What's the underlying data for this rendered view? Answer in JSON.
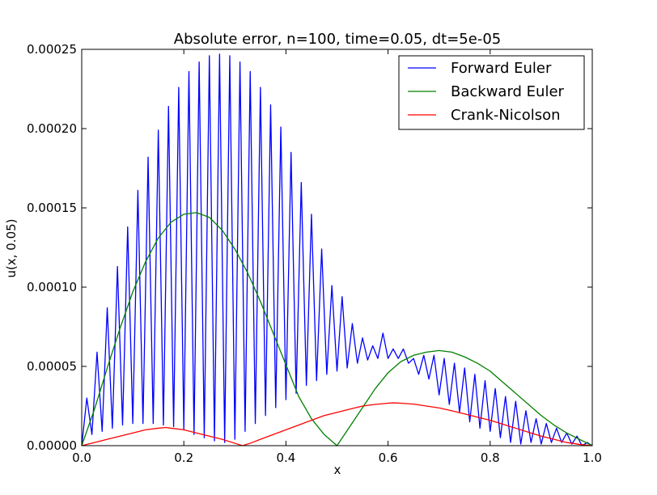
{
  "chart_data": {
    "type": "line",
    "title": "Absolute error, n=100, time=0.05, dt=5e-05",
    "xlabel": "x",
    "ylabel": "u(x, 0.05)",
    "xlim": [
      0.0,
      1.0
    ],
    "ylim": [
      0.0,
      0.00025
    ],
    "xticks": [
      "0.0",
      "0.2",
      "0.4",
      "0.6",
      "0.8",
      "1.0"
    ],
    "yticks": [
      "0.00000",
      "0.00005",
      "0.00010",
      "0.00015",
      "0.00020",
      "0.00025"
    ],
    "grid": false,
    "legend_position": "top-right",
    "series": [
      {
        "name": "Forward Euler",
        "color": "#0000ff",
        "x": [
          0.0,
          0.01,
          0.02,
          0.03,
          0.04,
          0.05,
          0.06,
          0.07,
          0.08,
          0.09,
          0.1,
          0.11,
          0.12,
          0.13,
          0.14,
          0.15,
          0.16,
          0.17,
          0.18,
          0.19,
          0.2,
          0.21,
          0.22,
          0.23,
          0.24,
          0.25,
          0.26,
          0.27,
          0.28,
          0.29,
          0.3,
          0.31,
          0.32,
          0.33,
          0.34,
          0.35,
          0.36,
          0.37,
          0.38,
          0.39,
          0.4,
          0.41,
          0.42,
          0.43,
          0.44,
          0.45,
          0.46,
          0.47,
          0.48,
          0.49,
          0.5,
          0.51,
          0.52,
          0.53,
          0.54,
          0.55,
          0.56,
          0.57,
          0.58,
          0.59,
          0.6,
          0.61,
          0.62,
          0.63,
          0.64,
          0.65,
          0.66,
          0.67,
          0.68,
          0.69,
          0.7,
          0.71,
          0.72,
          0.73,
          0.74,
          0.75,
          0.76,
          0.77,
          0.78,
          0.79,
          0.8,
          0.81,
          0.82,
          0.83,
          0.84,
          0.85,
          0.86,
          0.87,
          0.88,
          0.89,
          0.9,
          0.91,
          0.92,
          0.93,
          0.94,
          0.95,
          0.96,
          0.97,
          0.98,
          0.99,
          1.0
        ],
        "values": [
          0.0,
          3e-05,
          7e-06,
          5.9e-05,
          9e-06,
          8.7e-05,
          1.1e-05,
          0.000113,
          1.3e-05,
          0.000138,
          1.4e-05,
          0.000161,
          1.4e-05,
          0.000182,
          1.4e-05,
          0.000199,
          1.3e-05,
          0.000214,
          1.2e-05,
          0.000226,
          1e-05,
          0.000236,
          7e-06,
          0.000242,
          5e-06,
          0.000246,
          3e-06,
          0.000247,
          2e-06,
          0.000246,
          4e-06,
          0.000242,
          9e-06,
          0.000236,
          1.4e-05,
          0.000226,
          1.9e-05,
          0.000215,
          2.4e-05,
          0.000201,
          2.9e-05,
          0.000185,
          3.3e-05,
          0.000166,
          3.8e-05,
          0.000146,
          4.1e-05,
          0.000124,
          4.5e-05,
          0.000101,
          4.7e-05,
          9.4e-05,
          4.9e-05,
          7.7e-05,
          5.2e-05,
          6.8e-05,
          5.4e-05,
          6.3e-05,
          5.5e-05,
          7.1e-05,
          5.5e-05,
          6.1e-05,
          5.5e-05,
          6.1e-05,
          5.2e-05,
          5.5e-05,
          4.5e-05,
          5.7e-05,
          4.2e-05,
          5.7e-05,
          3.2e-05,
          5.5e-05,
          2.6e-05,
          5.2e-05,
          2.1e-05,
          4.9e-05,
          1.5e-05,
          4.5e-05,
          1.1e-05,
          4.1e-05,
          9e-06,
          3.6e-05,
          5e-06,
          3.1e-05,
          2e-06,
          2.8e-05,
          1e-06,
          2.2e-05,
          2e-06,
          1.7e-05,
          1e-06,
          1.4e-05,
          2e-06,
          1.1e-05,
          2e-06,
          8e-06,
          1e-06,
          6e-06,
          0.0,
          2e-06,
          0.0
        ]
      },
      {
        "name": "Backward Euler",
        "color": "#008000",
        "x": [
          0.0,
          0.025,
          0.05,
          0.075,
          0.1,
          0.125,
          0.15,
          0.175,
          0.2,
          0.225,
          0.25,
          0.275,
          0.3,
          0.325,
          0.35,
          0.375,
          0.4,
          0.425,
          0.45,
          0.475,
          0.5,
          0.525,
          0.55,
          0.575,
          0.6,
          0.625,
          0.65,
          0.675,
          0.7,
          0.725,
          0.75,
          0.775,
          0.8,
          0.825,
          0.85,
          0.875,
          0.9,
          0.925,
          0.95,
          0.975,
          1.0
        ],
        "values": [
          0.0,
          2.3e-05,
          4.9e-05,
          7.4e-05,
          9.7e-05,
          0.000116,
          0.000131,
          0.000141,
          0.000146,
          0.000147,
          0.000144,
          0.000136,
          0.000124,
          0.000109,
          9.1e-05,
          7.1e-05,
          5.1e-05,
          3.1e-05,
          1.7e-05,
          7e-06,
          0.0,
          1.2e-05,
          2.4e-05,
          3.6e-05,
          4.6e-05,
          5.3e-05,
          5.7e-05,
          5.9e-05,
          6e-05,
          5.9e-05,
          5.6e-05,
          5.2e-05,
          4.7e-05,
          4e-05,
          3.3e-05,
          2.6e-05,
          1.9e-05,
          1.3e-05,
          8e-06,
          4e-06,
          0.0
        ]
      },
      {
        "name": "Crank-Nicolson",
        "color": "#ff0000",
        "x": [
          0.0,
          0.025,
          0.05,
          0.075,
          0.1,
          0.125,
          0.15,
          0.165,
          0.175,
          0.2,
          0.225,
          0.25,
          0.275,
          0.3,
          0.315,
          0.33,
          0.35,
          0.375,
          0.4,
          0.425,
          0.45,
          0.475,
          0.5,
          0.525,
          0.55,
          0.575,
          0.6,
          0.61,
          0.625,
          0.65,
          0.675,
          0.7,
          0.725,
          0.75,
          0.775,
          0.8,
          0.825,
          0.85,
          0.875,
          0.9,
          0.925,
          0.95,
          0.975,
          1.0
        ],
        "values": [
          0.0,
          2e-06,
          4e-06,
          6e-06,
          8e-06,
          1e-05,
          1.1e-05,
          1.15e-05,
          1.1e-05,
          1e-05,
          8e-06,
          6e-06,
          4e-06,
          1.5e-06,
          0.0,
          1.5e-06,
          4e-06,
          7e-06,
          1e-05,
          1.3e-05,
          1.6e-05,
          1.9e-05,
          2.1e-05,
          2.3e-05,
          2.5e-05,
          2.6e-05,
          2.68e-05,
          2.7e-05,
          2.68e-05,
          2.62e-05,
          2.5e-05,
          2.38e-05,
          2.2e-05,
          2e-05,
          1.8e-05,
          1.6e-05,
          1.35e-05,
          1.1e-05,
          8.5e-06,
          6e-06,
          4e-06,
          2e-06,
          8e-07,
          0.0
        ]
      }
    ]
  }
}
